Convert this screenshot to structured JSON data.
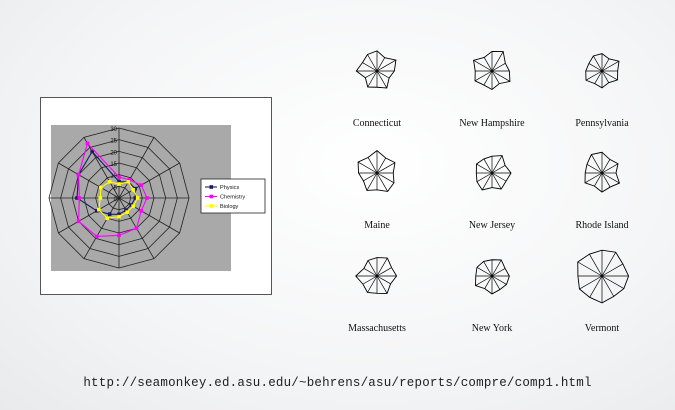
{
  "source_url": "http://seamonkey.ed.asu.edu/~behrens/asu/reports/compre/comp1.html",
  "colors": {
    "plot_background": "#a9a9a9",
    "physics": "#1a1a66",
    "chemistry": "#ff00ff",
    "biology": "#ffff00",
    "star_stroke": "#000000"
  },
  "chart_data": [
    {
      "type": "radar",
      "title": "",
      "ticks": [
        0,
        5,
        10,
        15,
        20,
        25,
        30
      ],
      "rlim": [
        0,
        30
      ],
      "axes_count": 12,
      "grid": true,
      "legend_position": "right",
      "series": [
        {
          "name": "Physics",
          "values": [
            7,
            8,
            8,
            7,
            6,
            6,
            7,
            8,
            11,
            18,
            20,
            23
          ]
        },
        {
          "name": "Chemistry",
          "values": [
            9,
            9,
            11,
            12,
            11,
            15,
            16,
            19,
            20,
            17,
            20,
            27
          ]
        },
        {
          "name": "Biology",
          "values": [
            6,
            8,
            7,
            8,
            7,
            7,
            8,
            10,
            10,
            8,
            9,
            8
          ]
        }
      ]
    },
    {
      "type": "star-glyphs",
      "title": "",
      "variables_count": 12,
      "states": [
        {
          "name": "Connecticut",
          "values": [
            0.72,
            0.55,
            0.78,
            0.62,
            0.5,
            0.7,
            0.58,
            0.66,
            0.48,
            0.74,
            0.6,
            0.68
          ]
        },
        {
          "name": "New Hampshire",
          "values": [
            0.7,
            0.8,
            0.55,
            0.62,
            0.74,
            0.52,
            0.66,
            0.58,
            0.7,
            0.6,
            0.76,
            0.56
          ]
        },
        {
          "name": "Pennsylvania",
          "values": [
            0.62,
            0.5,
            0.7,
            0.56,
            0.64,
            0.48,
            0.6,
            0.52,
            0.66,
            0.58,
            0.54,
            0.62
          ]
        },
        {
          "name": "Maine",
          "values": [
            0.8,
            0.62,
            0.74,
            0.58,
            0.7,
            0.76,
            0.6,
            0.72,
            0.56,
            0.66,
            0.78,
            0.64
          ]
        },
        {
          "name": "New Jersey",
          "values": [
            0.6,
            0.72,
            0.54,
            0.68,
            0.58,
            0.66,
            0.52,
            0.7,
            0.62,
            0.56,
            0.64,
            0.58
          ]
        },
        {
          "name": "Rhode Island",
          "values": [
            0.74,
            0.56,
            0.66,
            0.5,
            0.72,
            0.58,
            0.68,
            0.54,
            0.7,
            0.6,
            0.62,
            0.76
          ]
        },
        {
          "name": "Massachusetts",
          "values": [
            0.66,
            0.74,
            0.6,
            0.7,
            0.56,
            0.72,
            0.62,
            0.68,
            0.58,
            0.76,
            0.54,
            0.64
          ]
        },
        {
          "name": "New York",
          "values": [
            0.58,
            0.66,
            0.54,
            0.62,
            0.6,
            0.56,
            0.64,
            0.52,
            0.68,
            0.58,
            0.62,
            0.6
          ]
        },
        {
          "name": "Vermont",
          "values": [
            0.92,
            0.98,
            0.86,
            0.95,
            0.9,
            0.84,
            0.96,
            0.88,
            0.93,
            0.86,
            1.0,
            0.9
          ]
        }
      ]
    }
  ]
}
